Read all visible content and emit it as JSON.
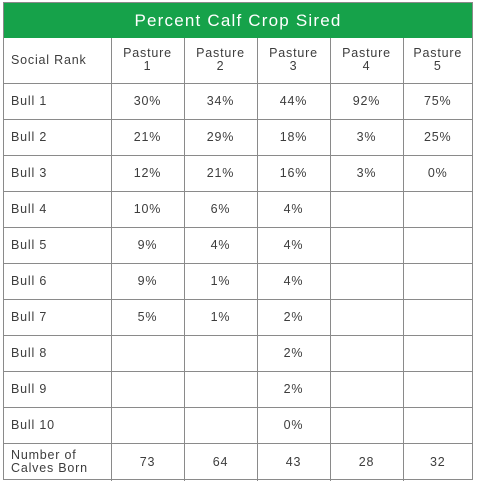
{
  "title": "Percent Calf Crop Sired",
  "header": {
    "rank_label": "Social Rank",
    "pastures": [
      {
        "line1": "Pasture",
        "line2": "1"
      },
      {
        "line1": "Pasture",
        "line2": "2"
      },
      {
        "line1": "Pasture",
        "line2": "3"
      },
      {
        "line1": "Pasture",
        "line2": "4"
      },
      {
        "line1": "Pasture",
        "line2": "5"
      }
    ]
  },
  "rows": [
    {
      "label": "Bull 1",
      "values": [
        "30%",
        "34%",
        "44%",
        "92%",
        "75%"
      ]
    },
    {
      "label": "Bull 2",
      "values": [
        "21%",
        "29%",
        "18%",
        "3%",
        "25%"
      ]
    },
    {
      "label": "Bull 3",
      "values": [
        "12%",
        "21%",
        "16%",
        "3%",
        "0%"
      ]
    },
    {
      "label": "Bull 4",
      "values": [
        "10%",
        "6%",
        "4%",
        "",
        ""
      ]
    },
    {
      "label": "Bull 5",
      "values": [
        "9%",
        "4%",
        "4%",
        "",
        ""
      ]
    },
    {
      "label": "Bull 6",
      "values": [
        "9%",
        "1%",
        "4%",
        "",
        ""
      ]
    },
    {
      "label": "Bull 7",
      "values": [
        "5%",
        "1%",
        "2%",
        "",
        ""
      ]
    },
    {
      "label": "Bull 8",
      "values": [
        "",
        "",
        "2%",
        "",
        ""
      ]
    },
    {
      "label": "Bull 9",
      "values": [
        "",
        "",
        "2%",
        "",
        ""
      ]
    },
    {
      "label": "Bull 10",
      "values": [
        "",
        "",
        "0%",
        "",
        ""
      ]
    }
  ],
  "footer": {
    "label_line1": "Number of",
    "label_line2": "Calves Born",
    "values": [
      "73",
      "64",
      "43",
      "28",
      "32"
    ]
  },
  "colors": {
    "title_background": "#16a24a",
    "title_text": "#ffffff",
    "border": "#8a8a8a",
    "text": "#3d3d3d"
  }
}
